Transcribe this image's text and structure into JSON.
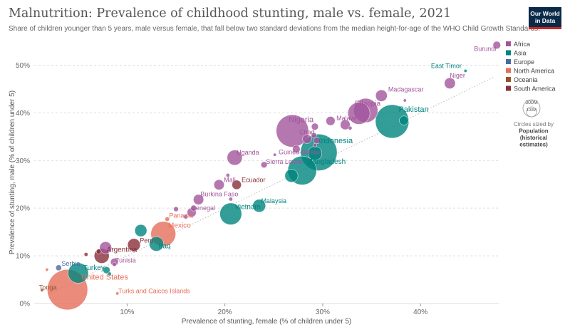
{
  "header": {
    "title": "Malnutrition: Prevalence of childhood stunting, male vs. female, 2021",
    "subtitle": "Share of children younger than 5 years, male versus female, that fall below two standard deviations from the median height-for-age of the WHO Child Growth Standards.",
    "logo_line1": "Our World",
    "logo_line2": "in Data"
  },
  "legend": {
    "regions": [
      {
        "name": "Africa",
        "color": "#a2559c"
      },
      {
        "name": "Asia",
        "color": "#00847e"
      },
      {
        "name": "Europe",
        "color": "#4c6a9c"
      },
      {
        "name": "North America",
        "color": "#e56e5a"
      },
      {
        "name": "Oceania",
        "color": "#9a5129"
      },
      {
        "name": "South America",
        "color": "#883039"
      }
    ],
    "size_value": "300M",
    "size_value_small": "100M",
    "size_caption": [
      "Circles sized by",
      "Population",
      "(historical",
      "estimates)"
    ]
  },
  "colors": {
    "Africa": "#a2559c",
    "Asia": "#00847e",
    "Europe": "#4c6a9c",
    "North America": "#e56e5a",
    "Oceania": "#9a5129",
    "South America": "#883039"
  },
  "chart_data": {
    "type": "scatter",
    "xlabel": "Prevalence of stunting, female (% of children under 5)",
    "ylabel": "Prevalence of stunting, male (% of children under 5)",
    "xlim": [
      0.5,
      48
    ],
    "ylim": [
      0,
      55
    ],
    "x_ticks": [
      10,
      20,
      30,
      40
    ],
    "x_tick_labels": [
      "10%",
      "20%",
      "30%",
      "40%"
    ],
    "y_ticks": [
      0,
      10,
      20,
      30,
      40,
      50
    ],
    "y_tick_labels": [
      "0%",
      "10%",
      "20%",
      "30%",
      "40%",
      "50%"
    ],
    "grid": "horizontal dashed",
    "reference_line": "y = x",
    "points": [
      {
        "label": "Burundi",
        "region": "Africa",
        "x": 47.8,
        "y": 54.2,
        "pop": 12
      },
      {
        "label": "East Timor",
        "region": "Asia",
        "x": 44.6,
        "y": 48.8,
        "pop": 1.3
      },
      {
        "label": "Niger",
        "region": "Africa",
        "x": 43.0,
        "y": 46.2,
        "pop": 25
      },
      {
        "label": "Madagascar",
        "region": "Africa",
        "x": 36.0,
        "y": 43.6,
        "pop": 28
      },
      {
        "label": "",
        "region": "Africa",
        "x": 38.4,
        "y": 42.6,
        "pop": 2
      },
      {
        "label": "Ethiopia",
        "region": "Africa",
        "x": 34.4,
        "y": 40.5,
        "pop": 120
      },
      {
        "label": "Pakistan",
        "region": "Asia",
        "x": 37.1,
        "y": 38.2,
        "pop": 230
      },
      {
        "label": "",
        "region": "Asia",
        "x": 38.3,
        "y": 38.4,
        "pop": 17
      },
      {
        "label": "Malawi",
        "region": "Africa",
        "x": 32.3,
        "y": 37.5,
        "pop": 20
      },
      {
        "label": "",
        "region": "Africa",
        "x": 32.8,
        "y": 36.8,
        "pop": 3
      },
      {
        "label": "",
        "region": "Africa",
        "x": 33.7,
        "y": 39.9,
        "pop": 100
      },
      {
        "label": "",
        "region": "Africa",
        "x": 30.8,
        "y": 38.3,
        "pop": 17
      },
      {
        "label": "Nigeria",
        "region": "Africa",
        "x": 26.9,
        "y": 36.2,
        "pop": 215
      },
      {
        "label": "",
        "region": "Africa",
        "x": 29.2,
        "y": 37.1,
        "pop": 10
      },
      {
        "label": "Chad",
        "region": "Africa",
        "x": 28.4,
        "y": 34.5,
        "pop": 17
      },
      {
        "label": "",
        "region": "Africa",
        "x": 29.1,
        "y": 35.3,
        "pop": 6
      },
      {
        "label": "",
        "region": "Africa",
        "x": 29.4,
        "y": 34.2,
        "pop": 9
      },
      {
        "label": "Indonesia",
        "region": "Asia",
        "x": 29.6,
        "y": 31.7,
        "pop": 275
      },
      {
        "label": "",
        "region": "Asia",
        "x": 29.2,
        "y": 31.5,
        "pop": 40
      },
      {
        "label": "",
        "region": "Africa",
        "x": 29.2,
        "y": 33.2,
        "pop": 3
      },
      {
        "label": "Guinea-Bissau",
        "region": "Africa",
        "x": 25.1,
        "y": 31.2,
        "pop": 2
      },
      {
        "label": "",
        "region": "Africa",
        "x": 27.3,
        "y": 32.4,
        "pop": 12
      },
      {
        "label": "Uganda",
        "region": "Africa",
        "x": 21.0,
        "y": 30.6,
        "pop": 47
      },
      {
        "label": "Sierra Leone",
        "region": "Africa",
        "x": 24.0,
        "y": 29.1,
        "pop": 8
      },
      {
        "label": "Bangladesh",
        "region": "Asia",
        "x": 27.9,
        "y": 27.9,
        "pop": 170
      },
      {
        "label": "",
        "region": "Asia",
        "x": 26.8,
        "y": 26.8,
        "pop": 35
      },
      {
        "label": "Mali",
        "region": "Africa",
        "x": 19.4,
        "y": 24.9,
        "pop": 22
      },
      {
        "label": "",
        "region": "Africa",
        "x": 20.3,
        "y": 26.9,
        "pop": 3
      },
      {
        "label": "Ecuador",
        "region": "South America",
        "x": 21.2,
        "y": 24.9,
        "pop": 18
      },
      {
        "label": "Burkina Faso",
        "region": "Africa",
        "x": 17.3,
        "y": 21.8,
        "pop": 22
      },
      {
        "label": "Malaysia",
        "region": "Asia",
        "x": 23.5,
        "y": 20.5,
        "pop": 34
      },
      {
        "label": "Vietnam",
        "region": "Asia",
        "x": 20.6,
        "y": 18.8,
        "pop": 98
      },
      {
        "label": "",
        "region": "Africa",
        "x": 20.6,
        "y": 21.9,
        "pop": 3
      },
      {
        "label": "",
        "region": "Africa",
        "x": 16.8,
        "y": 20.0,
        "pop": 7
      },
      {
        "label": "",
        "region": "Africa",
        "x": 15.0,
        "y": 19.8,
        "pop": 5
      },
      {
        "label": "Senegal",
        "region": "Africa",
        "x": 16.6,
        "y": 19.1,
        "pop": 17
      },
      {
        "label": "",
        "region": "Africa",
        "x": 16.0,
        "y": 18.2,
        "pop": 4
      },
      {
        "label": "Panama",
        "region": "North America",
        "x": 14.1,
        "y": 17.7,
        "pop": 4
      },
      {
        "label": "Mexico",
        "region": "North America",
        "x": 13.7,
        "y": 14.6,
        "pop": 127
      },
      {
        "label": "",
        "region": "Asia",
        "x": 11.4,
        "y": 15.3,
        "pop": 30
      },
      {
        "label": "Iraq",
        "region": "Asia",
        "x": 13.0,
        "y": 12.5,
        "pop": 43
      },
      {
        "label": "Peru",
        "region": "South America",
        "x": 10.7,
        "y": 12.3,
        "pop": 33
      },
      {
        "label": "Argentina",
        "region": "South America",
        "x": 7.4,
        "y": 10.0,
        "pop": 46
      },
      {
        "label": "",
        "region": "Africa",
        "x": 7.8,
        "y": 11.7,
        "pop": 30
      },
      {
        "label": "",
        "region": "South America",
        "x": 7.1,
        "y": 10.9,
        "pop": 5
      },
      {
        "label": "",
        "region": "South America",
        "x": 5.8,
        "y": 10.3,
        "pop": 3
      },
      {
        "label": "Tunisia",
        "region": "Africa",
        "x": 8.7,
        "y": 8.7,
        "pop": 12
      },
      {
        "label": "",
        "region": "Africa",
        "x": 8.7,
        "y": 8.2,
        "pop": 3
      },
      {
        "label": "Serbia",
        "region": "Europe",
        "x": 3.0,
        "y": 7.5,
        "pop": 7
      },
      {
        "label": "",
        "region": "North America",
        "x": 1.8,
        "y": 7.1,
        "pop": 2
      },
      {
        "label": "Turkey",
        "region": "Asia",
        "x": 5.0,
        "y": 6.4,
        "pop": 85
      },
      {
        "label": "",
        "region": "Asia",
        "x": 7.9,
        "y": 7.0,
        "pop": 10
      },
      {
        "label": "",
        "region": "Asia",
        "x": 8.2,
        "y": 6.2,
        "pop": 3
      },
      {
        "label": "United States",
        "region": "North America",
        "x": 3.9,
        "y": 2.9,
        "pop": 335
      },
      {
        "label": "Tonga",
        "region": "Oceania",
        "x": 1.3,
        "y": 2.8,
        "pop": 0.1
      },
      {
        "label": "Turks and Caicos Islands",
        "region": "North America",
        "x": 9.0,
        "y": 2.1,
        "pop": 0.05
      }
    ],
    "labels": [
      {
        "text": "Burundi",
        "region": "Africa",
        "x": 46.6,
        "y": 53.0,
        "anchor": "middle",
        "size": 9
      },
      {
        "text": "East Timor",
        "region": "Asia",
        "x": 44.2,
        "y": 49.4,
        "anchor": "end",
        "size": 9
      },
      {
        "text": "Niger",
        "region": "Africa",
        "x": 43.0,
        "y": 47.4,
        "anchor": "start",
        "size": 9
      },
      {
        "text": "Madagascar",
        "region": "Africa",
        "x": 38.5,
        "y": 44.5,
        "anchor": "middle",
        "size": 9
      },
      {
        "text": "Ethiopia",
        "region": "Africa",
        "x": 34.6,
        "y": 41.5,
        "anchor": "middle",
        "size": 10
      },
      {
        "text": "Pakistan",
        "region": "Asia",
        "x": 39.3,
        "y": 40.2,
        "anchor": "middle",
        "size": 11
      },
      {
        "text": "Malawi",
        "region": "Africa",
        "x": 31.4,
        "y": 38.4,
        "anchor": "start",
        "size": 9
      },
      {
        "text": "Nigeria",
        "region": "Africa",
        "x": 27.8,
        "y": 38.0,
        "anchor": "middle",
        "size": 11
      },
      {
        "text": "Chad",
        "region": "Africa",
        "x": 27.6,
        "y": 35.5,
        "anchor": "start",
        "size": 9
      },
      {
        "text": "Indonesia",
        "region": "Asia",
        "x": 29.6,
        "y": 33.6,
        "anchor": "start",
        "size": 11
      },
      {
        "text": "Guinea-Bissau",
        "region": "Africa",
        "x": 25.5,
        "y": 31.3,
        "anchor": "start",
        "size": 9
      },
      {
        "text": "Uganda",
        "region": "Africa",
        "x": 21.2,
        "y": 31.2,
        "anchor": "start",
        "size": 9
      },
      {
        "text": "Bangladesh",
        "region": "Asia",
        "x": 28.5,
        "y": 29.3,
        "anchor": "start",
        "size": 10
      },
      {
        "text": "Sierra Leone",
        "region": "Africa",
        "x": 24.2,
        "y": 29.3,
        "anchor": "start",
        "size": 9
      },
      {
        "text": "Mali",
        "region": "Africa",
        "x": 19.9,
        "y": 25.5,
        "anchor": "start",
        "size": 9
      },
      {
        "text": "Ecuador",
        "region": "South America",
        "x": 21.7,
        "y": 25.5,
        "anchor": "start",
        "size": 9
      },
      {
        "text": "Burkina Faso",
        "region": "Africa",
        "x": 17.5,
        "y": 22.5,
        "anchor": "start",
        "size": 9
      },
      {
        "text": "Malaysia",
        "region": "Asia",
        "x": 23.7,
        "y": 21.1,
        "anchor": "start",
        "size": 9
      },
      {
        "text": "Vietnam",
        "region": "Asia",
        "x": 21.0,
        "y": 19.8,
        "anchor": "start",
        "size": 10
      },
      {
        "text": "Senegal",
        "region": "Africa",
        "x": 16.6,
        "y": 19.6,
        "anchor": "start",
        "size": 9
      },
      {
        "text": "Panama",
        "region": "North America",
        "x": 14.3,
        "y": 18.0,
        "anchor": "start",
        "size": 9
      },
      {
        "text": "Mexico",
        "region": "North America",
        "x": 14.2,
        "y": 15.9,
        "anchor": "start",
        "size": 10
      },
      {
        "text": "Peru",
        "region": "South America",
        "x": 11.3,
        "y": 12.8,
        "anchor": "start",
        "size": 9
      },
      {
        "text": "Iraq",
        "region": "Asia",
        "x": 13.2,
        "y": 11.6,
        "anchor": "start",
        "size": 10
      },
      {
        "text": "Argentina",
        "region": "South America",
        "x": 7.9,
        "y": 10.8,
        "anchor": "start",
        "size": 10
      },
      {
        "text": "Tunisia",
        "region": "Africa",
        "x": 8.8,
        "y": 8.6,
        "anchor": "start",
        "size": 9
      },
      {
        "text": "Serbia",
        "region": "Europe",
        "x": 3.3,
        "y": 7.9,
        "anchor": "start",
        "size": 9
      },
      {
        "text": "Turkey",
        "region": "Asia",
        "x": 5.5,
        "y": 7.0,
        "anchor": "start",
        "size": 10
      },
      {
        "text": "United States",
        "region": "North America",
        "x": 5.3,
        "y": 5.0,
        "anchor": "start",
        "size": 11
      },
      {
        "text": "Tonga",
        "region": "Oceania",
        "x": 1.0,
        "y": 2.9,
        "anchor": "start",
        "size": 9
      },
      {
        "text": "Turks and Caicos Islands",
        "region": "North America",
        "x": 9.1,
        "y": 2.2,
        "anchor": "start",
        "size": 9
      }
    ]
  }
}
